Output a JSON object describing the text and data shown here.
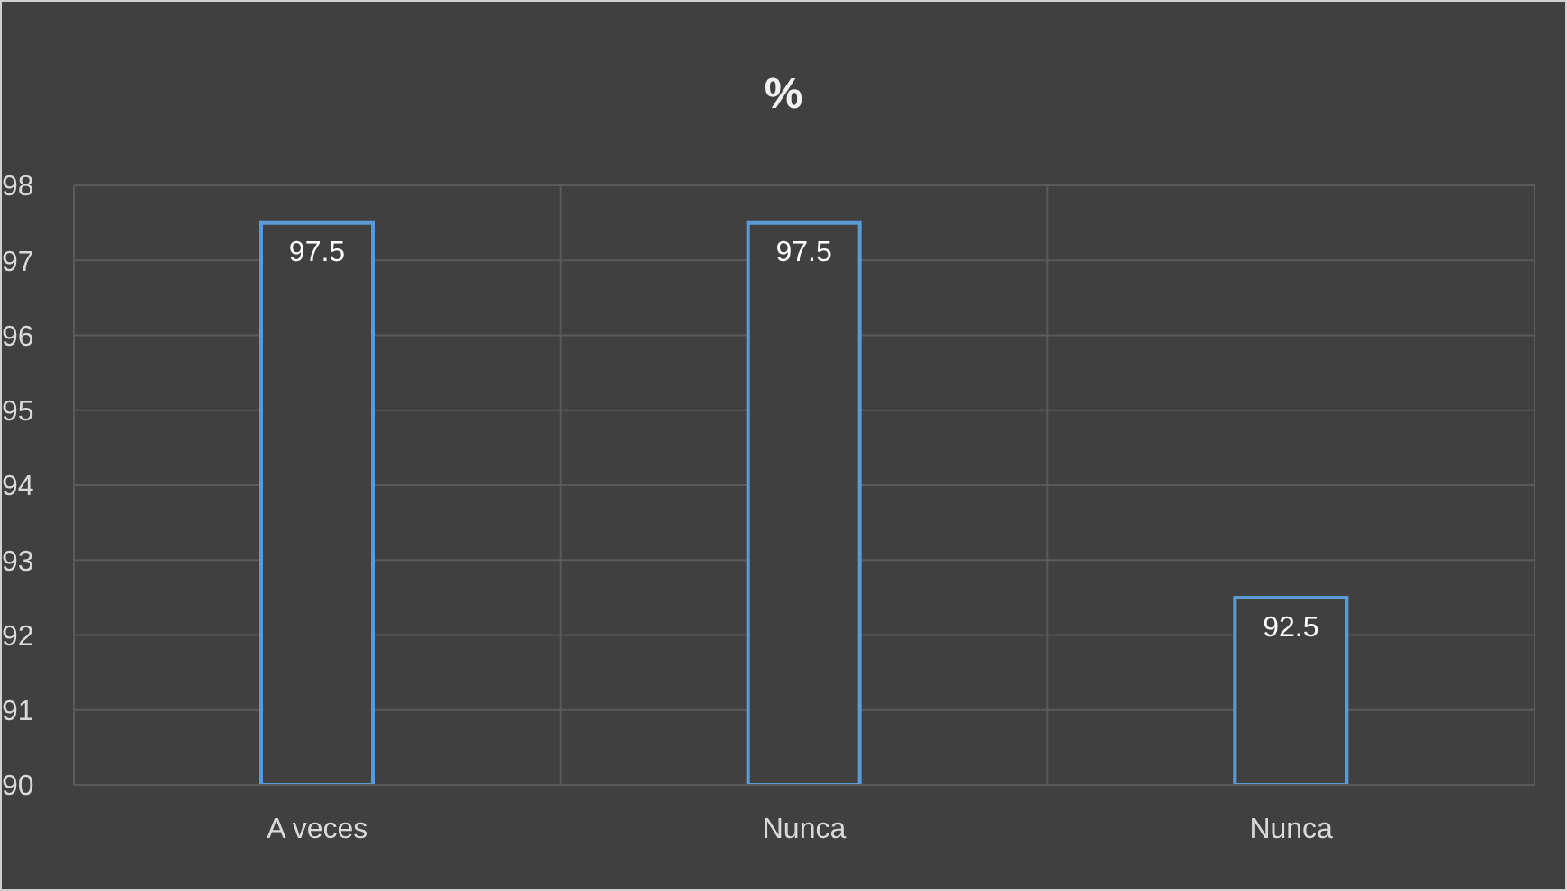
{
  "chart_data": {
    "type": "bar",
    "title": "%",
    "categories": [
      "A veces",
      "Nunca",
      "Nunca"
    ],
    "values": [
      97.5,
      97.5,
      92.5
    ],
    "color": "#5b9bd5",
    "ylim": [
      90,
      98
    ],
    "yticks": [
      90,
      91,
      92,
      93,
      94,
      95,
      96,
      97,
      98
    ],
    "grid": true,
    "data_labels": true
  }
}
